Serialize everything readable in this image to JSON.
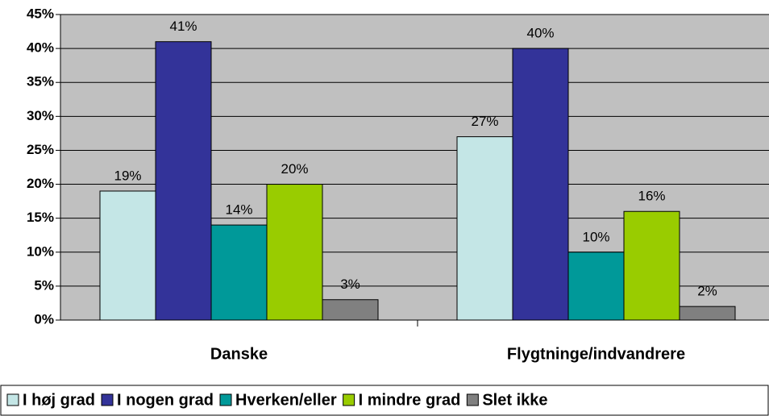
{
  "chart_data": {
    "type": "bar",
    "categories": [
      "Danske",
      "Flygtninge/indvandrere"
    ],
    "series": [
      {
        "name": "I høj grad",
        "color": "#c4e6e6",
        "values": [
          19,
          27
        ],
        "value_labels": [
          "19%",
          "27%"
        ]
      },
      {
        "name": "I nogen grad",
        "color": "#333399",
        "values": [
          41,
          40
        ],
        "value_labels": [
          "41%",
          "40%"
        ]
      },
      {
        "name": "Hverken/eller",
        "color": "#009999",
        "values": [
          14,
          10
        ],
        "value_labels": [
          "14%",
          "10%"
        ]
      },
      {
        "name": "I mindre grad",
        "color": "#99cc00",
        "values": [
          20,
          16
        ],
        "value_labels": [
          "20%",
          "16%"
        ]
      },
      {
        "name": "Slet ikke",
        "color": "#808080",
        "values": [
          3,
          2
        ],
        "value_labels": [
          "3%",
          "2%"
        ]
      }
    ],
    "ylim": [
      0,
      45
    ],
    "yticks": [
      {
        "value": 0,
        "label": "0%"
      },
      {
        "value": 5,
        "label": "5%"
      },
      {
        "value": 10,
        "label": "10%"
      },
      {
        "value": 15,
        "label": "15%"
      },
      {
        "value": 20,
        "label": "20%"
      },
      {
        "value": 25,
        "label": "25%"
      },
      {
        "value": 30,
        "label": "30%"
      },
      {
        "value": 35,
        "label": "35%"
      },
      {
        "value": 40,
        "label": "40%"
      },
      {
        "value": 45,
        "label": "45%"
      }
    ],
    "grid": true,
    "plot_background": "#c0c0c0",
    "legend": "bottom"
  }
}
